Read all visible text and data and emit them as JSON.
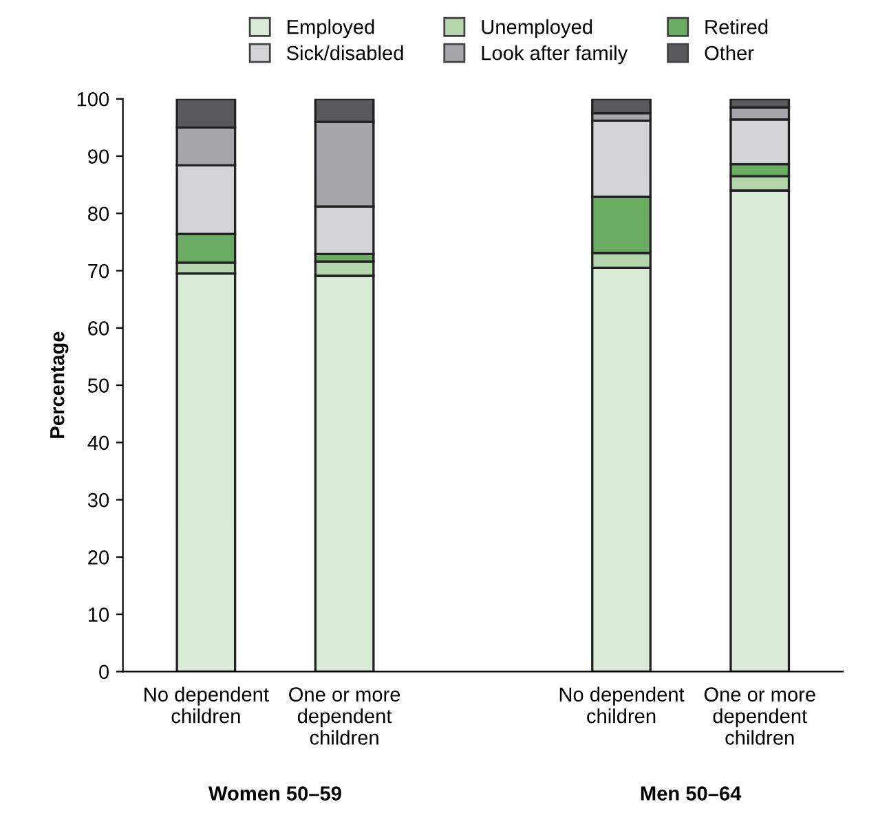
{
  "chart_data": {
    "type": "bar",
    "stacked": true,
    "ylabel": "Percentage",
    "categories": [
      "No dependent\nchildren",
      "One or more\ndependent\nchildren",
      "No dependent\nchildren",
      "One or more\ndependent\nchildren"
    ],
    "series": [
      {
        "name": "Employed",
        "color": "#d9ead7",
        "values": [
          69.5,
          69.1,
          70.5,
          84.0
        ]
      },
      {
        "name": "Unemployed",
        "color": "#b5d6ad",
        "values": [
          1.9,
          2.5,
          2.6,
          2.5
        ]
      },
      {
        "name": "Retired",
        "color": "#6aad62",
        "values": [
          5.0,
          1.3,
          9.8,
          2.1
        ]
      },
      {
        "name": "Sick/disabled",
        "color": "#d3d4d6",
        "values": [
          12.0,
          8.3,
          13.3,
          7.8
        ]
      },
      {
        "name": "Look after family",
        "color": "#a6a7aa",
        "values": [
          6.6,
          14.8,
          1.3,
          2.1
        ]
      },
      {
        "name": "Other",
        "color": "#58595b",
        "values": [
          5.0,
          4.0,
          2.5,
          1.5
        ]
      }
    ],
    "ylim": [
      0,
      100
    ],
    "yticks": [
      0,
      10,
      20,
      30,
      40,
      50,
      60,
      70,
      80,
      90,
      100
    ],
    "grid": false,
    "legend": "top",
    "annotations": [
      "Women 50–59",
      "Men 50–64"
    ]
  }
}
